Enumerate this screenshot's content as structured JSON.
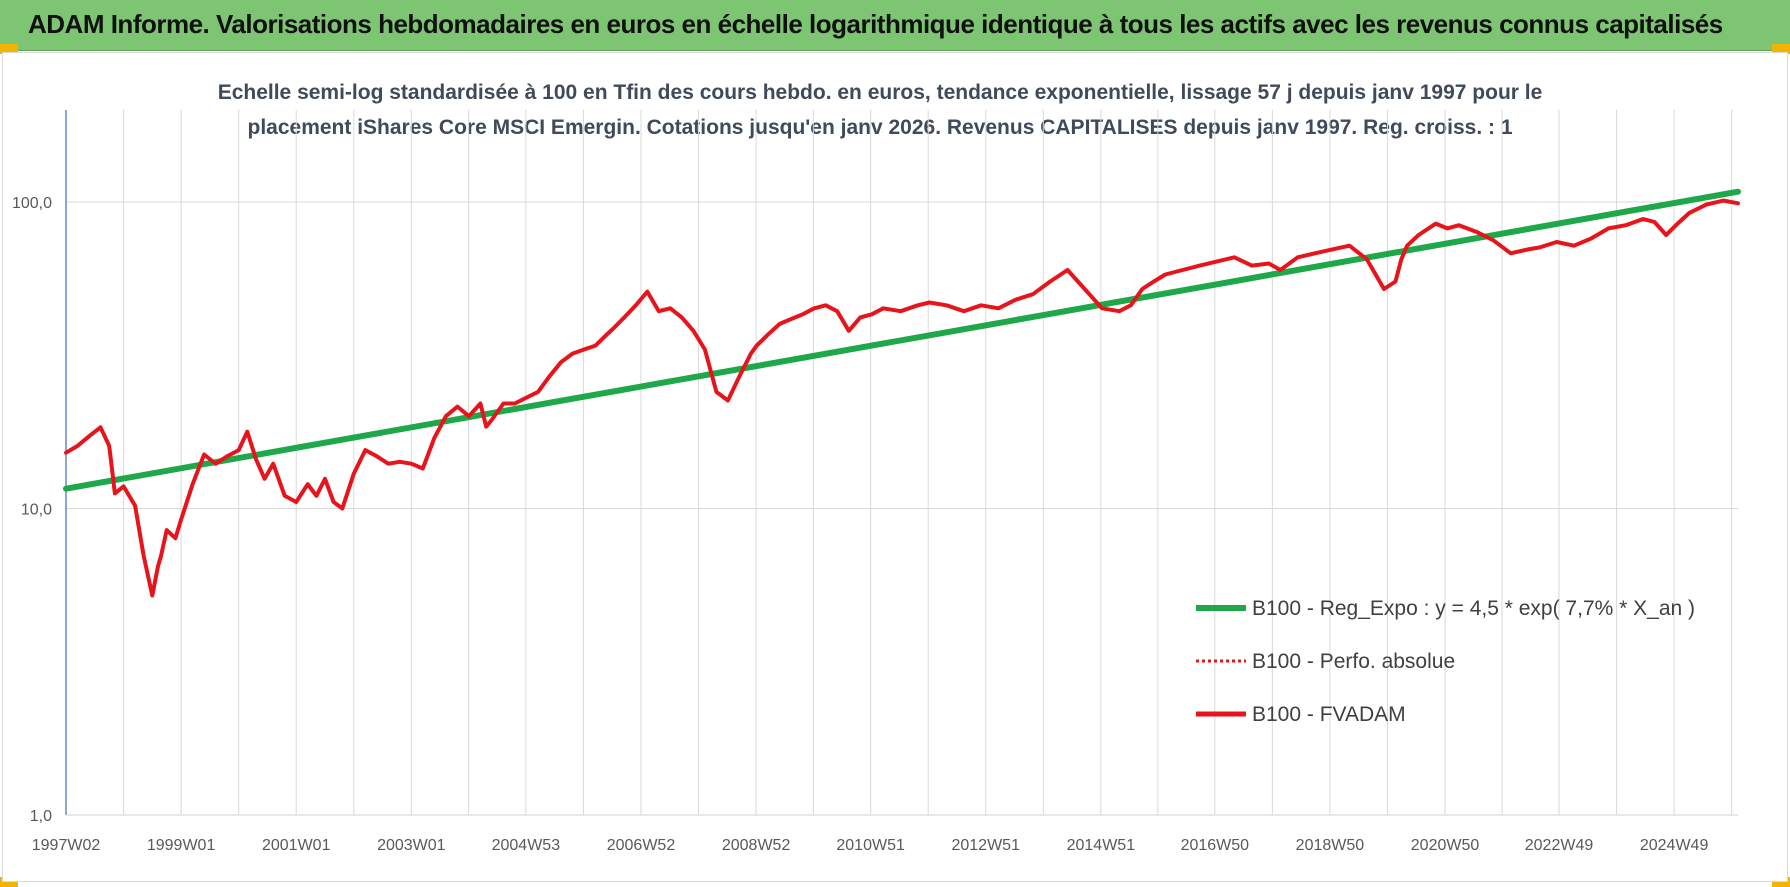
{
  "header": {
    "title": "ADAM Informe. Valorisations hebdomadaires en euros en échelle logarithmique identique à tous les actifs avec les revenus connus capitalisés"
  },
  "colors": {
    "header_bg": "#7dc572",
    "trend": "#1fa84a",
    "series": "#e8141c",
    "grid": "#d9d9d9",
    "axis": "#3d6fb5"
  },
  "chart_data": {
    "type": "line",
    "title_lines": [
      "Echelle semi-log standardisée à 100 en Tfin des cours hebdo. en euros, tendance exponentielle, lissage 57 j depuis janv 1997 pour le",
      "placement iShares Core MSCI Emergin. Cotations jusqu'en janv 2026. Revenus CAPITALISES depuis janv 1997. Reg. croiss. : 1"
    ],
    "y_scale": "log",
    "ylim": [
      1,
      200
    ],
    "y_ticks": [
      1,
      10,
      100
    ],
    "y_tick_labels": [
      "1,0",
      "10,0",
      "100,0"
    ],
    "xlim": [
      1997.0,
      2026.05
    ],
    "x_ticks": [
      1997.0,
      1999.0,
      2001.0,
      2003.0,
      2004.99,
      2006.99,
      2008.99,
      2010.98,
      2012.98,
      2014.98,
      2016.96,
      2018.96,
      2020.96,
      2022.94,
      2024.94
    ],
    "x_tick_labels": [
      "1997W02",
      "1999W01",
      "2001W01",
      "2003W01",
      "2004W53",
      "2006W52",
      "2008W52",
      "2010W51",
      "2012W51",
      "2014W51",
      "2016W50",
      "2018W50",
      "2020W50",
      "2022W49",
      "2024W49"
    ],
    "grid": "vertical and horizontal",
    "legend_position": "bottom-right",
    "series": [
      {
        "name": "B100 - Reg_Expo : y = 4,5 * exp( 7,7% *  X_an )",
        "style": "solid-thick",
        "color": "#1fa84a",
        "x": [
          1997.0,
          2026.05
        ],
        "y": [
          11.6,
          108
        ]
      },
      {
        "name": "B100 - Perfo. absolue",
        "style": "dotted",
        "color": "#e8141c",
        "x": [],
        "y": []
      },
      {
        "name": "B100 - FVADAM",
        "style": "solid",
        "color": "#e8141c",
        "x": [
          1997.0,
          1997.2,
          1997.4,
          1997.6,
          1997.75,
          1997.85,
          1998.0,
          1998.2,
          1998.35,
          1998.5,
          1998.6,
          1998.65,
          1998.75,
          1998.9,
          1999.0,
          1999.2,
          1999.4,
          1999.6,
          1999.8,
          2000.0,
          2000.15,
          2000.3,
          2000.45,
          2000.6,
          2000.8,
          2001.0,
          2001.2,
          2001.35,
          2001.5,
          2001.65,
          2001.8,
          2002.0,
          2002.2,
          2002.4,
          2002.6,
          2002.8,
          2003.0,
          2003.2,
          2003.4,
          2003.6,
          2003.8,
          2004.0,
          2004.2,
          2004.3,
          2004.4,
          2004.6,
          2004.8,
          2005.0,
          2005.2,
          2005.4,
          2005.6,
          2005.8,
          2006.0,
          2006.2,
          2006.4,
          2006.5,
          2006.7,
          2006.9,
          2007.1,
          2007.3,
          2007.5,
          2007.7,
          2007.9,
          2008.1,
          2008.3,
          2008.5,
          2008.7,
          2008.9,
          2009.0,
          2009.2,
          2009.4,
          2009.6,
          2009.8,
          2010.0,
          2010.2,
          2010.4,
          2010.6,
          2010.8,
          2011.0,
          2011.2,
          2011.5,
          2011.8,
          2012.0,
          2012.3,
          2012.6,
          2012.9,
          2013.2,
          2013.5,
          2013.8,
          2014.1,
          2014.4,
          2014.7,
          2015.0,
          2015.3,
          2015.5,
          2015.7,
          2015.9,
          2016.1,
          2016.4,
          2016.7,
          2017.0,
          2017.3,
          2017.6,
          2017.9,
          2018.1,
          2018.4,
          2018.7,
          2019.0,
          2019.3,
          2019.6,
          2019.9,
          2020.1,
          2020.2,
          2020.3,
          2020.5,
          2020.8,
          2021.0,
          2021.2,
          2021.5,
          2021.8,
          2022.1,
          2022.4,
          2022.6,
          2022.9,
          2023.2,
          2023.5,
          2023.8,
          2024.1,
          2024.4,
          2024.6,
          2024.8,
          2025.0,
          2025.2,
          2025.5,
          2025.8,
          2026.05
        ],
        "y": [
          15.2,
          16.0,
          17.2,
          18.4,
          16.0,
          11.2,
          11.8,
          10.2,
          7.0,
          5.2,
          6.5,
          7.0,
          8.5,
          8.0,
          9.2,
          12.0,
          15.0,
          14.0,
          14.8,
          15.5,
          17.8,
          14.5,
          12.5,
          14.0,
          11.0,
          10.5,
          12.0,
          11.0,
          12.5,
          10.5,
          10.0,
          13.0,
          15.5,
          14.8,
          14.0,
          14.2,
          14.0,
          13.5,
          17.0,
          20.0,
          21.5,
          20.0,
          22.0,
          18.5,
          19.5,
          22.0,
          22.0,
          23.0,
          24.0,
          27.0,
          30.0,
          32.0,
          33.0,
          34.0,
          37.0,
          38.5,
          42.0,
          46.0,
          51.0,
          44.0,
          45.0,
          42.0,
          38.0,
          33.0,
          24.0,
          22.5,
          27.0,
          32.0,
          34.0,
          37.0,
          40.0,
          41.5,
          43.0,
          45.0,
          46.0,
          44.0,
          38.0,
          42.0,
          43.0,
          45.0,
          44.0,
          46.0,
          47.0,
          46.0,
          44.0,
          46.0,
          45.0,
          48.0,
          50.0,
          55.0,
          60.0,
          52.0,
          45.0,
          44.0,
          46.0,
          52.0,
          55.0,
          58.0,
          60.0,
          62.0,
          64.0,
          66.0,
          62.0,
          63.0,
          60.0,
          66.0,
          68.0,
          70.0,
          72.0,
          65.0,
          52.0,
          55.0,
          65.0,
          72.0,
          78.0,
          85.0,
          82.0,
          84.0,
          80.0,
          75.0,
          68.0,
          70.0,
          71.0,
          74.0,
          72.0,
          76.0,
          82.0,
          84.0,
          88.0,
          86.0,
          78.0,
          85.0,
          92.0,
          98.0,
          101.0,
          99.0
        ]
      }
    ]
  }
}
